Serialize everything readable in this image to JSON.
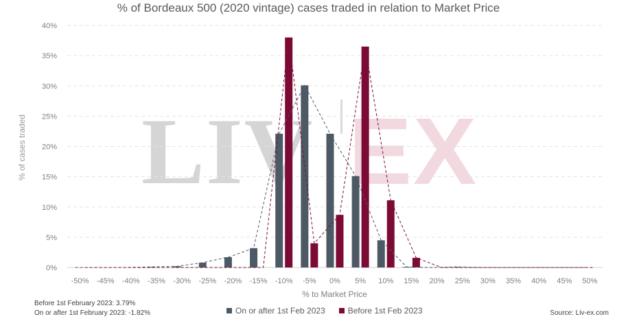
{
  "chart_data": {
    "type": "bar",
    "title": "% of Bordeaux 500 (2020 vintage) cases traded in relation to Market Price",
    "xlabel": "% to Market Price",
    "ylabel": "% of cases traded",
    "categories": [
      "-50%",
      "-45%",
      "-40%",
      "-35%",
      "-30%",
      "-25%",
      "-20%",
      "-15%",
      "-10%",
      "-5%",
      "0%",
      "5%",
      "10%",
      "15%",
      "20%",
      "25%",
      "30%",
      "35%",
      "40%",
      "45%",
      "50%"
    ],
    "ylim": [
      0,
      40
    ],
    "yticks": [
      "0%",
      "5%",
      "10%",
      "15%",
      "20%",
      "25%",
      "30%",
      "35%",
      "40%"
    ],
    "grid": true,
    "legend_position": "bottom",
    "series": [
      {
        "name": "On or after 1st Feb 2023",
        "color": "#4d5a66",
        "values": [
          0,
          0,
          0,
          0.1,
          0.2,
          0.8,
          1.7,
          3.2,
          22.1,
          30.1,
          22.1,
          15.1,
          4.5,
          0.1,
          0,
          0.1,
          0,
          0,
          0,
          0,
          0
        ]
      },
      {
        "name": "Before 1st Feb 2023",
        "color": "#7b0a35",
        "values": [
          0,
          0,
          0,
          0,
          0,
          0,
          0,
          0,
          38.0,
          4.0,
          8.7,
          36.5,
          11.1,
          1.6,
          0,
          0,
          0,
          0,
          0,
          0,
          0
        ]
      }
    ]
  },
  "notes": {
    "before": "Before 1st February 2023: 3.79%",
    "after": "On or after 1st February 2023: -1.82%"
  },
  "source": "Source: Liv-ex.com",
  "watermark": {
    "left": "LIV",
    "right": "EX"
  }
}
